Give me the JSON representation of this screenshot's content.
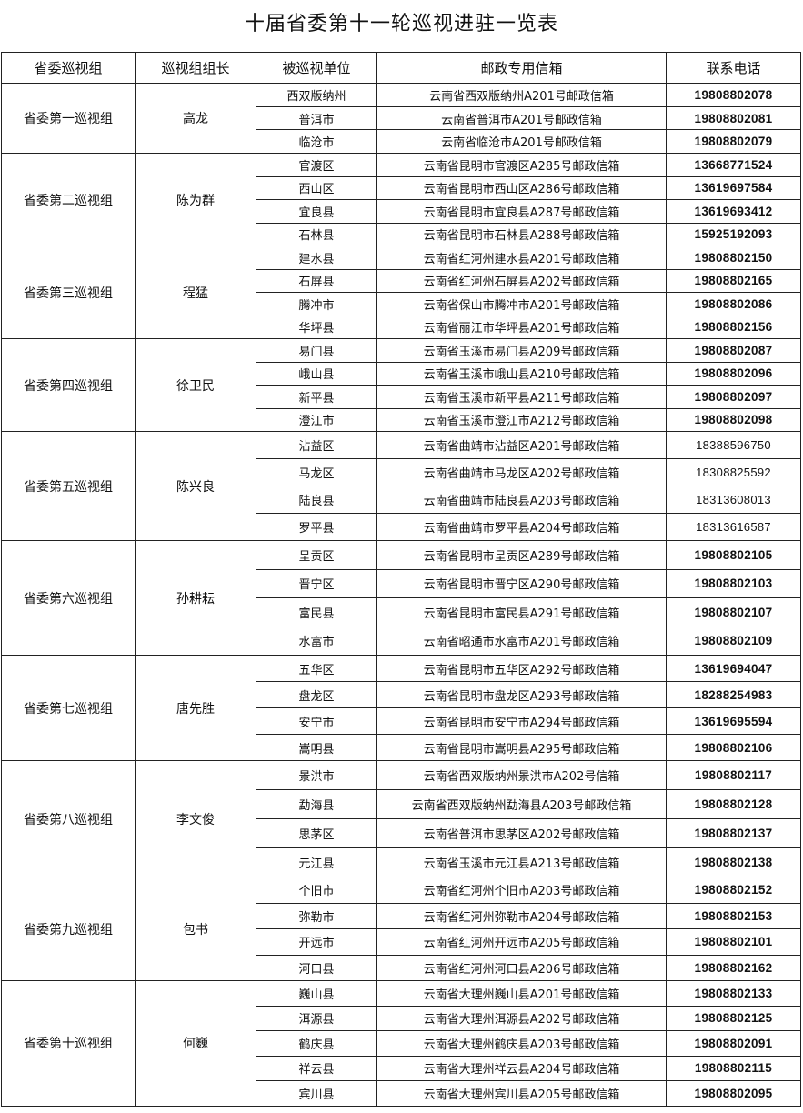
{
  "title": "十届省委第十一轮巡视进驻一览表",
  "headers": [
    "省委巡视组",
    "巡视组组长",
    "被巡视单位",
    "邮政专用信箱",
    "联系电话"
  ],
  "groups": [
    {
      "name": "省委第一巡视组",
      "leader": "高龙",
      "units": [
        {
          "unit": "西双版纳州",
          "mailbox": "云南省西双版纳州A201号邮政信箱",
          "phone": "19808802078"
        },
        {
          "unit": "普洱市",
          "mailbox": "云南省普洱市A201号邮政信箱",
          "phone": "19808802081"
        },
        {
          "unit": "临沧市",
          "mailbox": "云南省临沧市A201号邮政信箱",
          "phone": "19808802079"
        }
      ]
    },
    {
      "name": "省委第二巡视组",
      "leader": "陈为群",
      "units": [
        {
          "unit": "官渡区",
          "mailbox": "云南省昆明市官渡区A285号邮政信箱",
          "phone": "13668771524"
        },
        {
          "unit": "西山区",
          "mailbox": "云南省昆明市西山区A286号邮政信箱",
          "phone": "13619697584"
        },
        {
          "unit": "宜良县",
          "mailbox": "云南省昆明市宜良县A287号邮政信箱",
          "phone": "13619693412"
        },
        {
          "unit": "石林县",
          "mailbox": "云南省昆明市石林县A288号邮政信箱",
          "phone": "15925192093"
        }
      ]
    },
    {
      "name": "省委第三巡视组",
      "leader": "程猛",
      "units": [
        {
          "unit": "建水县",
          "mailbox": "云南省红河州建水县A201号邮政信箱",
          "phone": "19808802150"
        },
        {
          "unit": "石屏县",
          "mailbox": "云南省红河州石屏县A202号邮政信箱",
          "phone": "19808802165"
        },
        {
          "unit": "腾冲市",
          "mailbox": "云南省保山市腾冲市A201号邮政信箱",
          "phone": "19808802086"
        },
        {
          "unit": "华坪县",
          "mailbox": "云南省丽江市华坪县A201号邮政信箱",
          "phone": "19808802156"
        }
      ]
    },
    {
      "name": "省委第四巡视组",
      "leader": "徐卫民",
      "units": [
        {
          "unit": "易门县",
          "mailbox": "云南省玉溪市易门县A209号邮政信箱",
          "phone": "19808802087"
        },
        {
          "unit": "峨山县",
          "mailbox": "云南省玉溪市峨山县A210号邮政信箱",
          "phone": "19808802096"
        },
        {
          "unit": "新平县",
          "mailbox": "云南省玉溪市新平县A211号邮政信箱",
          "phone": "19808802097"
        },
        {
          "unit": "澄江市",
          "mailbox": "云南省玉溪市澄江市A212号邮政信箱",
          "phone": "19808802098"
        }
      ]
    },
    {
      "name": "省委第五巡视组",
      "leader": "陈兴良",
      "units": [
        {
          "unit": "沾益区",
          "mailbox": "云南省曲靖市沾益区A201号邮政信箱",
          "phone": "18388596750"
        },
        {
          "unit": "马龙区",
          "mailbox": "云南省曲靖市马龙区A202号邮政信箱",
          "phone": "18308825592"
        },
        {
          "unit": "陆良县",
          "mailbox": "云南省曲靖市陆良县A203号邮政信箱",
          "phone": "18313608013"
        },
        {
          "unit": "罗平县",
          "mailbox": "云南省曲靖市罗平县A204号邮政信箱",
          "phone": "18313616587"
        }
      ]
    },
    {
      "name": "省委第六巡视组",
      "leader": "孙耕耘",
      "units": [
        {
          "unit": "呈贡区",
          "mailbox": "云南省昆明市呈贡区A289号邮政信箱",
          "phone": "19808802105"
        },
        {
          "unit": "晋宁区",
          "mailbox": "云南省昆明市晋宁区A290号邮政信箱",
          "phone": "19808802103"
        },
        {
          "unit": "富民县",
          "mailbox": "云南省昆明市富民县A291号邮政信箱",
          "phone": "19808802107"
        },
        {
          "unit": "水富市",
          "mailbox": "云南省昭通市水富市A201号邮政信箱",
          "phone": "19808802109"
        }
      ]
    },
    {
      "name": "省委第七巡视组",
      "leader": "唐先胜",
      "units": [
        {
          "unit": "五华区",
          "mailbox": "云南省昆明市五华区A292号邮政信箱",
          "phone": "13619694047"
        },
        {
          "unit": "盘龙区",
          "mailbox": "云南省昆明市盘龙区A293号邮政信箱",
          "phone": "18288254983"
        },
        {
          "unit": "安宁市",
          "mailbox": "云南省昆明市安宁市A294号邮政信箱",
          "phone": "13619695594"
        },
        {
          "unit": "嵩明县",
          "mailbox": "云南省昆明市嵩明县A295号邮政信箱",
          "phone": "19808802106"
        }
      ]
    },
    {
      "name": "省委第八巡视组",
      "leader": "李文俊",
      "units": [
        {
          "unit": "景洪市",
          "mailbox": "云南省西双版纳州景洪市A202号信箱",
          "phone": "19808802117"
        },
        {
          "unit": "勐海县",
          "mailbox": "云南省西双版纳州勐海县A203号邮政信箱",
          "phone": "19808802128"
        },
        {
          "unit": "思茅区",
          "mailbox": "云南省普洱市思茅区A202号邮政信箱",
          "phone": "19808802137"
        },
        {
          "unit": "元江县",
          "mailbox": "云南省玉溪市元江县A213号邮政信箱",
          "phone": "19808802138"
        }
      ]
    },
    {
      "name": "省委第九巡视组",
      "leader": "包书",
      "units": [
        {
          "unit": "个旧市",
          "mailbox": "云南省红河州个旧市A203号邮政信箱",
          "phone": "19808802152"
        },
        {
          "unit": "弥勒市",
          "mailbox": "云南省红河州弥勒市A204号邮政信箱",
          "phone": "19808802153"
        },
        {
          "unit": "开远市",
          "mailbox": "云南省红河州开远市A205号邮政信箱",
          "phone": "19808802101"
        },
        {
          "unit": "河口县",
          "mailbox": "云南省红河州河口县A206号邮政信箱",
          "phone": "19808802162"
        }
      ]
    },
    {
      "name": "省委第十巡视组",
      "leader": "何巍",
      "units": [
        {
          "unit": "巍山县",
          "mailbox": "云南省大理州巍山县A201号邮政信箱",
          "phone": "19808802133"
        },
        {
          "unit": "洱源县",
          "mailbox": "云南省大理州洱源县A202号邮政信箱",
          "phone": "19808802125"
        },
        {
          "unit": "鹤庆县",
          "mailbox": "云南省大理州鹤庆县A203号邮政信箱",
          "phone": "19808802091"
        },
        {
          "unit": "祥云县",
          "mailbox": "云南省大理州祥云县A204号邮政信箱",
          "phone": "19808802115"
        },
        {
          "unit": "宾川县",
          "mailbox": "云南省大理州宾川县A205号邮政信箱",
          "phone": "19808802095"
        }
      ]
    }
  ]
}
